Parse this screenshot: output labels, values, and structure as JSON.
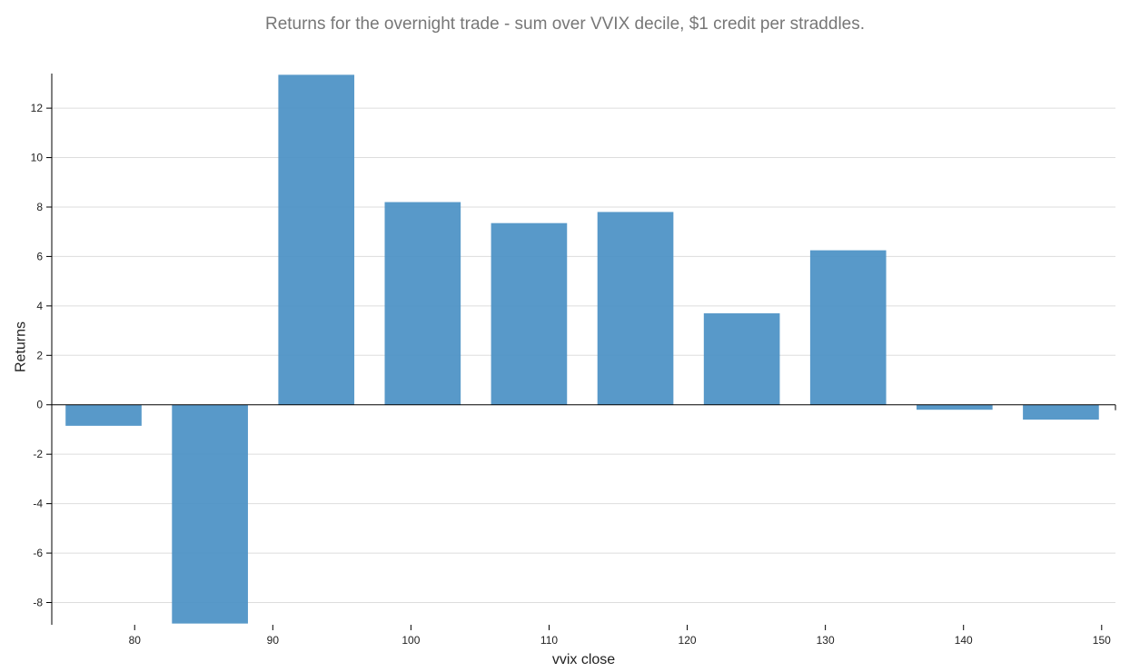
{
  "chart_data": {
    "type": "bar",
    "title": "Returns for the overnight trade - sum over VVIX decile, $1 credit per straddles.",
    "xlabel": "vvix close",
    "ylabel": "Returns",
    "xlim": [
      74,
      151
    ],
    "ylim": [
      -8.9,
      13.4
    ],
    "x_ticks": [
      80,
      90,
      100,
      110,
      120,
      130,
      140,
      150
    ],
    "y_ticks": [
      -8,
      -6,
      -4,
      -2,
      0,
      2,
      4,
      6,
      8,
      10,
      12
    ],
    "grid": true,
    "bar_color": "#4a90c4",
    "series": [
      {
        "bars": [
          {
            "x0": 75.0,
            "x1": 80.5,
            "value": -0.85
          },
          {
            "x0": 82.7,
            "x1": 88.2,
            "value": -8.85
          },
          {
            "x0": 90.4,
            "x1": 95.9,
            "value": 13.35
          },
          {
            "x0": 98.1,
            "x1": 103.6,
            "value": 8.2
          },
          {
            "x0": 105.8,
            "x1": 111.3,
            "value": 7.35
          },
          {
            "x0": 113.5,
            "x1": 119.0,
            "value": 7.8
          },
          {
            "x0": 121.2,
            "x1": 126.7,
            "value": 3.7
          },
          {
            "x0": 128.9,
            "x1": 134.4,
            "value": 6.25
          },
          {
            "x0": 136.6,
            "x1": 142.1,
            "value": -0.2
          },
          {
            "x0": 144.3,
            "x1": 149.8,
            "value": -0.6
          }
        ]
      }
    ]
  }
}
